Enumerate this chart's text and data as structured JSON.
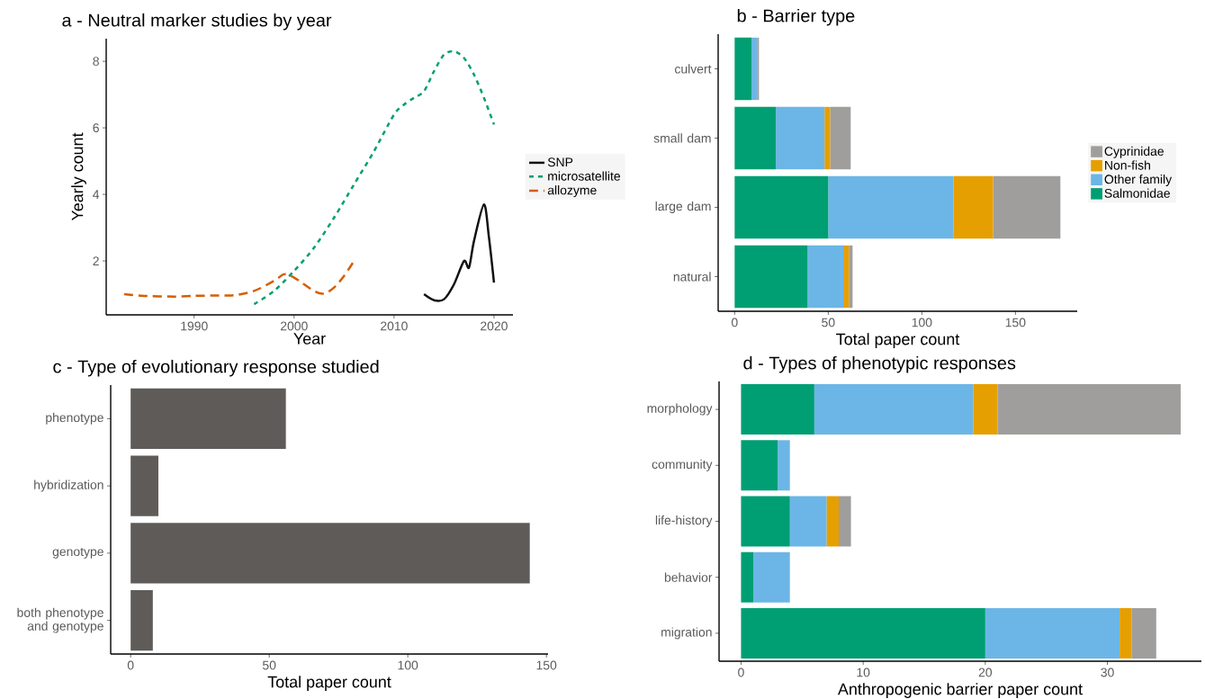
{
  "chart_data": [
    {
      "type": "line",
      "title": "a - Neutral marker studies by year",
      "xlabel": "Year",
      "ylabel": "Yearly count",
      "xlim": [
        1981.2,
        2021.9
      ],
      "ylim": [
        0.38,
        8.68
      ],
      "xticks": [
        1990,
        2000,
        2010,
        2020
      ],
      "yticks": [
        2,
        4,
        6,
        8
      ],
      "legend": "right",
      "series": [
        {
          "name": "SNP",
          "color": "#111111",
          "line_style": "solid",
          "x": [
            2013,
            2014,
            2015,
            2016,
            2017,
            2017.5,
            2018,
            2019,
            2019.5,
            2020
          ],
          "values": [
            1.0,
            0.82,
            0.85,
            1.3,
            2.0,
            1.8,
            2.6,
            3.7,
            2.7,
            1.35
          ]
        },
        {
          "name": "microsatellite",
          "color": "#009E73",
          "line_style": "dotted",
          "x": [
            1996,
            1998,
            2000,
            2002,
            2004,
            2006,
            2008,
            2010,
            2011,
            2012,
            2013,
            2014,
            2015,
            2016,
            2017,
            2018,
            2019,
            2020
          ],
          "values": [
            0.7,
            1.1,
            1.7,
            2.4,
            3.3,
            4.3,
            5.3,
            6.4,
            6.7,
            6.9,
            7.1,
            7.7,
            8.2,
            8.3,
            8.1,
            7.6,
            6.9,
            6.1
          ]
        },
        {
          "name": "allozyme",
          "color": "#D55E00",
          "line_style": "dashed",
          "x": [
            1983,
            1985,
            1988,
            1990,
            1992,
            1994,
            1996,
            1998,
            1999,
            2000,
            2002,
            2003,
            2004,
            2005,
            2006
          ],
          "values": [
            1.0,
            0.95,
            0.93,
            0.95,
            0.96,
            0.97,
            1.1,
            1.4,
            1.6,
            1.5,
            1.1,
            1.02,
            1.2,
            1.55,
            2.0
          ]
        }
      ]
    },
    {
      "type": "bar",
      "orientation": "horizontal",
      "stacked": true,
      "title": "b - Barrier type",
      "xlabel": "Total paper count",
      "categories": [
        "culvert",
        "small dam",
        "large dam",
        "natural"
      ],
      "xlim": [
        -8.8,
        183
      ],
      "xticks": [
        0,
        50,
        100,
        150
      ],
      "legend": "right",
      "series": [
        {
          "name": "Salmonidae",
          "color": "#009E73",
          "values": [
            9,
            22,
            50,
            39
          ]
        },
        {
          "name": "Other family",
          "color": "#6BB6E6",
          "values": [
            3,
            26,
            67,
            19
          ]
        },
        {
          "name": "Non-fish",
          "color": "#E69F00",
          "values": [
            0,
            3,
            21,
            3
          ]
        },
        {
          "name": "Cyprinidae",
          "color": "#A09E9C",
          "values": [
            1,
            11,
            36,
            2
          ]
        }
      ]
    },
    {
      "type": "bar",
      "orientation": "horizontal",
      "title": "c - Type of evolutionary response studied",
      "xlabel": "Total paper count",
      "categories": [
        "phenotype",
        "hybridization",
        "genotype",
        "both phenotype and genotype"
      ],
      "xlim": [
        -7.2,
        150.6
      ],
      "xticks": [
        0,
        50,
        100,
        150
      ],
      "series": [
        {
          "color": "#5F5B59",
          "values": [
            56,
            10,
            144,
            8
          ]
        }
      ]
    },
    {
      "type": "bar",
      "orientation": "horizontal",
      "stacked": true,
      "title": "d - Types of phenotypic responses",
      "xlabel": "Anthropogenic barrier paper count",
      "categories": [
        "morphology",
        "community",
        "life-history",
        "behavior",
        "migration"
      ],
      "xlim": [
        -1.8,
        37.7
      ],
      "xticks": [
        0,
        10,
        20,
        30
      ],
      "series": [
        {
          "color": "#009E73",
          "values": [
            6,
            3,
            4,
            1,
            20
          ]
        },
        {
          "color": "#6BB6E6",
          "values": [
            13,
            1,
            3,
            3,
            11
          ]
        },
        {
          "color": "#E69F00",
          "values": [
            2,
            0,
            1,
            0,
            1
          ]
        },
        {
          "color": "#A09E9C",
          "values": [
            15,
            0,
            1,
            0,
            2
          ]
        }
      ]
    }
  ]
}
